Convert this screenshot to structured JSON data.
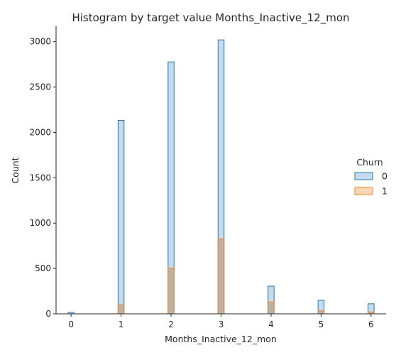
{
  "chart_data": {
    "type": "bar",
    "title": "Histogram by target value Months_Inactive_12_mon",
    "xlabel": "Months_Inactive_12_mon",
    "ylabel": "Count",
    "xlim": [
      -0.3,
      6.3
    ],
    "ylim": [
      0,
      3170
    ],
    "xticks": [
      0,
      1,
      2,
      3,
      4,
      5,
      6
    ],
    "yticks": [
      0,
      500,
      1000,
      1500,
      2000,
      2500,
      3000
    ],
    "categories": [
      0,
      1,
      2,
      3,
      4,
      5,
      6
    ],
    "bin_width": 0.12,
    "legend_title": "Churn",
    "legend_position": "right",
    "series": [
      {
        "name": "0",
        "values": [
          15,
          2133,
          2777,
          3020,
          305,
          149,
          111
        ],
        "fill": "#c6dcee",
        "stroke": "#1f77b4"
      },
      {
        "name": "1",
        "values": [
          0,
          100,
          505,
          826,
          130,
          32,
          19
        ],
        "fill": "#fdd8b8",
        "stroke": "#ff7f0e"
      }
    ],
    "overlap_fill": "#b9b2aa"
  }
}
